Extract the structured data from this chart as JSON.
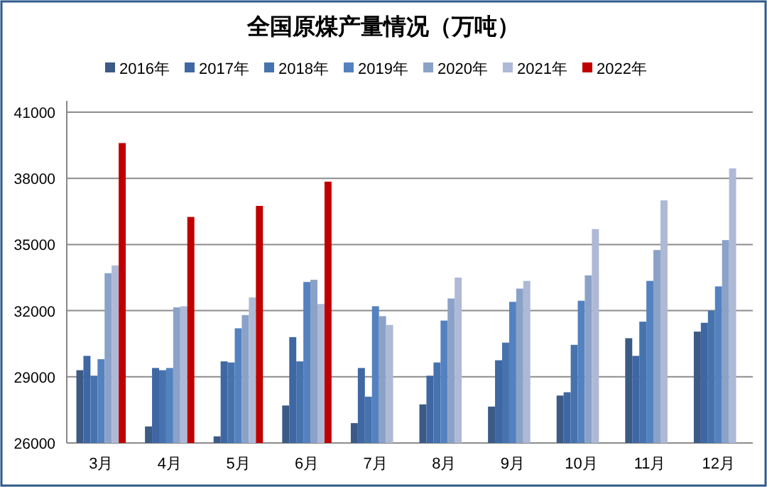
{
  "chart_data": {
    "type": "bar",
    "title": "全国原煤产量情况（万吨）",
    "categories": [
      "3月",
      "4月",
      "5月",
      "6月",
      "7月",
      "8月",
      "9月",
      "10月",
      "11月",
      "12月"
    ],
    "series": [
      {
        "name": "2016年",
        "color": "#3b5a86",
        "values": [
          29300,
          26750,
          26300,
          27700,
          26900,
          27750,
          27650,
          28150,
          30750,
          31050
        ]
      },
      {
        "name": "2017年",
        "color": "#3f67a3",
        "values": [
          29950,
          29400,
          29700,
          30800,
          29400,
          29050,
          29750,
          28300,
          29950,
          31450
        ]
      },
      {
        "name": "2018年",
        "color": "#4673ad",
        "values": [
          29050,
          29300,
          29650,
          29700,
          28100,
          29650,
          30550,
          30450,
          31500,
          32000
        ]
      },
      {
        "name": "2019年",
        "color": "#5482c0",
        "values": [
          29800,
          29400,
          31200,
          33300,
          32200,
          31550,
          32400,
          32450,
          33350,
          33100
        ]
      },
      {
        "name": "2020年",
        "color": "#8aa2c8",
        "values": [
          33700,
          32150,
          31800,
          33400,
          31750,
          32550,
          33000,
          33600,
          34750,
          35200
        ]
      },
      {
        "name": "2021年",
        "color": "#aeb9d6",
        "values": [
          34050,
          32200,
          32600,
          32300,
          31350,
          33500,
          33350,
          35700,
          37000,
          38450
        ]
      },
      {
        "name": "2022年",
        "color": "#c00000",
        "values": [
          39600,
          36250,
          36750,
          37850,
          null,
          null,
          null,
          null,
          null,
          null
        ]
      }
    ],
    "ylim": [
      26000,
      41000
    ],
    "yticks": [
      26000,
      29000,
      32000,
      35000,
      38000,
      41000
    ],
    "grid": "y",
    "legend": "top"
  }
}
